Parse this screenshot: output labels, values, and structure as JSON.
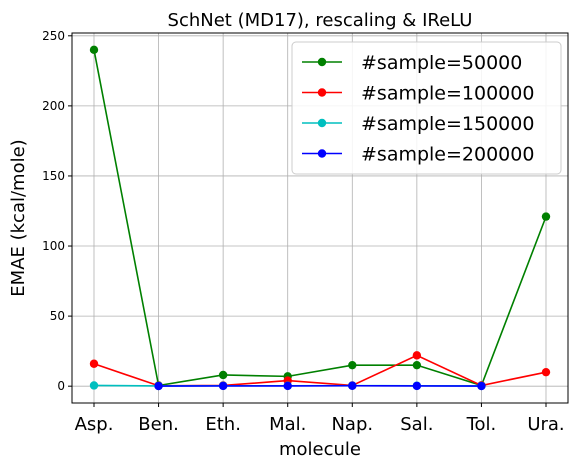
{
  "chart_data": {
    "type": "line",
    "title": "SchNet (MD17), rescaling & IReLU",
    "xlabel": "molecule",
    "ylabel": "EMAE (kcal/mole)",
    "categories": [
      "Asp.",
      "Ben.",
      "Eth.",
      "Mal.",
      "Nap.",
      "Sal.",
      "Tol.",
      "Ura."
    ],
    "ylim": [
      -12,
      252
    ],
    "yticks": [
      0,
      50,
      100,
      150,
      200,
      250
    ],
    "grid": true,
    "legend_position": "top-right",
    "series": [
      {
        "name": "#sample=50000",
        "color": "#008000",
        "values": [
          240,
          0.5,
          8,
          7,
          15,
          15,
          0.5,
          121
        ]
      },
      {
        "name": "#sample=100000",
        "color": "#ff0000",
        "values": [
          16,
          0.3,
          0.5,
          4,
          0.5,
          22,
          0.5,
          10
        ]
      },
      {
        "name": "#sample=150000",
        "color": "#00bfbf",
        "values": [
          0.5,
          0.2,
          0.3,
          0.3,
          0.4,
          0.3,
          0.2,
          null
        ]
      },
      {
        "name": "#sample=200000",
        "color": "#0000ff",
        "values": [
          null,
          0.1,
          0.2,
          0.2,
          0.3,
          0.2,
          0.1,
          null
        ]
      }
    ]
  }
}
